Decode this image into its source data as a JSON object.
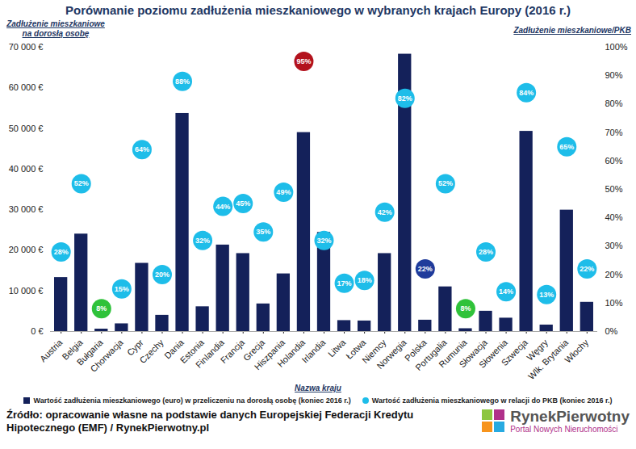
{
  "chart_data": {
    "type": "bar",
    "title": "Porównanie poziomu zadłużenia mieszkaniowego w wybranych krajach Europy (2016 r.)",
    "xlabel": "Nazwa kraju",
    "ylabel": "Zadłużenie mieszkaniowe na dorosłą osobę",
    "y2label": "Zadłużenie mieszkaniowe/PKB",
    "categories": [
      "Austria",
      "Belgia",
      "Bułgaria",
      "Chorwacja",
      "Cypr",
      "Czechy",
      "Dania",
      "Estonia",
      "Finlandia",
      "Francja",
      "Grecja",
      "Hiszpania",
      "Holandia",
      "Irlandia",
      "Litwa",
      "Łotwa",
      "Niemcy",
      "Norwegia",
      "Polska",
      "Portugalia",
      "Rumunia",
      "Słowacja",
      "Słowenia",
      "Szwecja",
      "Węgry",
      "Wlk. Brytania",
      "Włochy"
    ],
    "series": [
      {
        "name": "Wartość zadłużenia mieszkaniowego (euro) w przeliczeniu na dorosłą osobę (koniec 2016 r.)",
        "type": "bar",
        "color": "#14215a",
        "values": [
          13300,
          24000,
          600,
          1900,
          16800,
          4000,
          53700,
          6100,
          21300,
          19200,
          6800,
          14200,
          49000,
          24400,
          2700,
          2600,
          19200,
          68300,
          2800,
          11000,
          700,
          5000,
          3300,
          49300,
          1600,
          29900,
          7200
        ]
      },
      {
        "name": "Wartość zadłużenia mieszkaniowego w relacji do PKB (koniec 2016 r.)",
        "type": "scatter",
        "axis": "y2",
        "marker": "circle",
        "color": "#1ebde9",
        "data_labels": true,
        "colors": [
          "#1ebde9",
          "#1ebde9",
          "#2fc23a",
          "#1ebde9",
          "#1ebde9",
          "#1ebde9",
          "#1ebde9",
          "#1ebde9",
          "#1ebde9",
          "#1ebde9",
          "#1ebde9",
          "#1ebde9",
          "#b3121d",
          "#1ebde9",
          "#1ebde9",
          "#1ebde9",
          "#1ebde9",
          "#1ebde9",
          "#1f3b9b",
          "#1ebde9",
          "#2fc23a",
          "#1ebde9",
          "#1ebde9",
          "#1ebde9",
          "#1ebde9",
          "#1ebde9",
          "#1ebde9"
        ],
        "values": [
          28,
          52,
          8,
          15,
          64,
          20,
          88,
          32,
          44,
          45,
          35,
          49,
          95,
          32,
          17,
          18,
          42,
          82,
          22,
          52,
          8,
          28,
          14,
          84,
          13,
          65,
          22
        ],
        "value_labels": [
          "28%",
          "52%",
          "8%",
          "15%",
          "64%",
          "20%",
          "88%",
          "32%",
          "44%",
          "45%",
          "35%",
          "49%",
          "95%",
          "32%",
          "17%",
          "18%",
          "42%",
          "82%",
          "22%",
          "52%",
          "8%",
          "28%",
          "14%",
          "84%",
          "13%",
          "65%",
          "22%"
        ]
      }
    ],
    "ylim": [
      0,
      70000
    ],
    "yticks": [
      {
        "value": 0,
        "label": "0 €"
      },
      {
        "value": 10000,
        "label": "10 000 €"
      },
      {
        "value": 20000,
        "label": "20 000 €"
      },
      {
        "value": 30000,
        "label": "30 000 €"
      },
      {
        "value": 40000,
        "label": "40 000 €"
      },
      {
        "value": 50000,
        "label": "50 000 €"
      },
      {
        "value": 60000,
        "label": "60 000 €"
      },
      {
        "value": 70000,
        "label": "70 000 €"
      }
    ],
    "y2lim": [
      0,
      100
    ],
    "y2ticks": [
      {
        "value": 0,
        "label": "0%"
      },
      {
        "value": 10,
        "label": "10%"
      },
      {
        "value": 20,
        "label": "20%"
      },
      {
        "value": 30,
        "label": "30%"
      },
      {
        "value": 40,
        "label": "40%"
      },
      {
        "value": 50,
        "label": "50%"
      },
      {
        "value": 60,
        "label": "60%"
      },
      {
        "value": 70,
        "label": "70%"
      },
      {
        "value": 80,
        "label": "80%"
      },
      {
        "value": 90,
        "label": "90%"
      },
      {
        "value": 100,
        "label": "100%"
      }
    ],
    "grid": false,
    "legend": "bottom",
    "source": "Źródło: opracowanie własne na podstawie danych Europejskiej Federacji Kredytu Hipotecznego (EMF) / RynekPierwotny.pl",
    "logo": {
      "title": "RynekPierwotny",
      "subtitle": "Portal Nowych Nieruchomości"
    }
  }
}
